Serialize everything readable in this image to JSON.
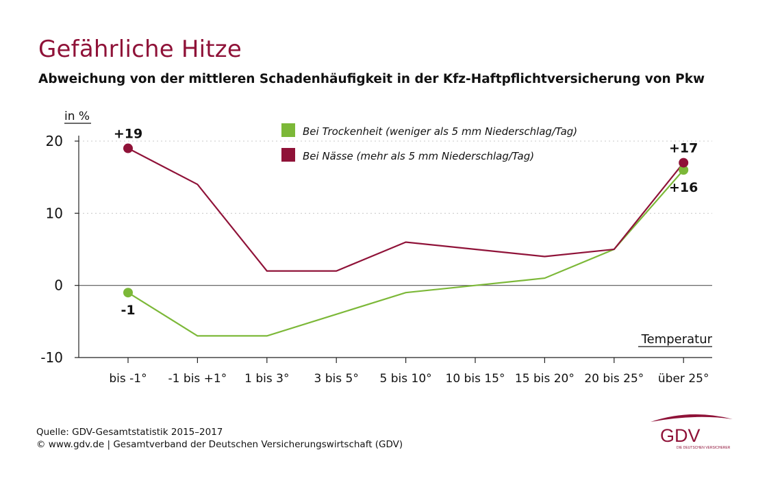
{
  "title": "Gefährliche Hitze",
  "subtitle": "Abweichung von der mittleren Schadenhäufigkeit in der Kfz-Haftpflichtversicherung von Pkw",
  "footer": {
    "source": "Quelle: GDV-Gesamtstatistik 2015–2017",
    "copyright": "© www.gdv.de | Gesamtverband der Deutschen Versicherungswirtschaft (GDV)"
  },
  "logo": {
    "text": "GDV",
    "tagline": "DIE DEUTSCHEN VERSICHERER"
  },
  "colors": {
    "dry": "#7cb838",
    "wet": "#8f1238",
    "title": "#8f1238",
    "axis": "#222222",
    "grid": "#c8c8c8"
  },
  "chart_data": {
    "type": "line",
    "ylabel": "in %",
    "xlabel": "Temperatur",
    "ylim": [
      -10,
      20
    ],
    "yticks": [
      -10,
      0,
      10,
      20
    ],
    "grid": true,
    "legend_position": "top-center",
    "categories": [
      "bis -1°",
      "-1 bis +1°",
      "1 bis 3°",
      "3 bis 5°",
      "5 bis 10°",
      "10 bis 15°",
      "15 bis 20°",
      "20 bis 25°",
      "über 25°"
    ],
    "series": [
      {
        "name": "Bei Trockenheit (weniger als 5 mm Niederschlag/Tag)",
        "color": "#7cb838",
        "values": [
          -1,
          -7,
          -7,
          -4,
          -1,
          0,
          1,
          5,
          16
        ]
      },
      {
        "name": "Bei Nässe (mehr als 5 mm Niederschlag/Tag)",
        "color": "#8f1238",
        "values": [
          19,
          14,
          2,
          2,
          6,
          5,
          4,
          5,
          17
        ]
      }
    ],
    "annotations": [
      {
        "series": 1,
        "index": 0,
        "text": "+19",
        "pos": "above"
      },
      {
        "series": 0,
        "index": 0,
        "text": "-1",
        "pos": "below"
      },
      {
        "series": 1,
        "index": 8,
        "text": "+17",
        "pos": "above"
      },
      {
        "series": 0,
        "index": 8,
        "text": "+16",
        "pos": "below"
      }
    ]
  }
}
